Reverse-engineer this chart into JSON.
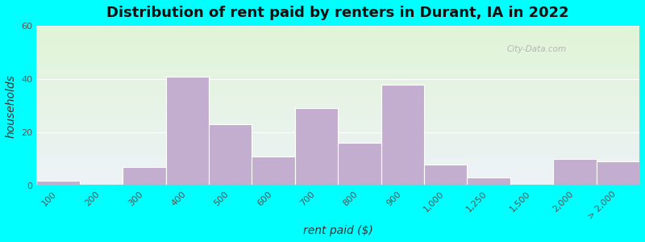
{
  "title": "Distribution of rent paid by renters in Durant, IA in 2022",
  "xlabel": "rent paid ($)",
  "ylabel": "households",
  "bar_color": "#c4aed0",
  "background_color": "#00ffff",
  "ylim": [
    0,
    60
  ],
  "yticks": [
    0,
    20,
    40,
    60
  ],
  "categories": [
    "100",
    "200",
    "300",
    "400",
    "500",
    "600",
    "700",
    "800",
    "900",
    "1,000",
    "1,250",
    "1,500",
    "2,000",
    "> 2,000"
  ],
  "values": [
    2,
    0,
    7,
    41,
    23,
    11,
    29,
    16,
    38,
    8,
    3,
    0,
    10,
    9
  ],
  "title_fontsize": 13,
  "axis_label_fontsize": 10,
  "tick_fontsize": 8,
  "watermark": "City-Data.com"
}
